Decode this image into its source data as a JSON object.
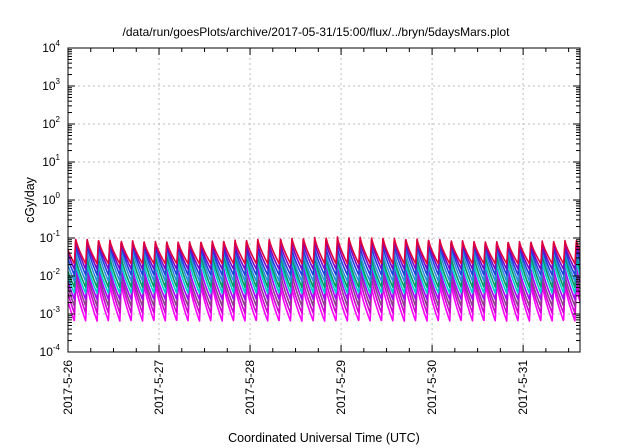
{
  "chart_data": {
    "type": "line",
    "title": "/data/run/goesPlots/archive/2017-05-31/15:00/flux/../bryn/5daysMars.plot",
    "xlabel": "Coordinated Universal Time (UTC)",
    "ylabel": "cGy/day",
    "yscale": "log",
    "ylim": [
      0.0001,
      10000
    ],
    "y_ticks": [
      {
        "base": "10",
        "exp": "-4"
      },
      {
        "base": "10",
        "exp": "-3"
      },
      {
        "base": "10",
        "exp": "-2"
      },
      {
        "base": "10",
        "exp": "-1"
      },
      {
        "base": "10",
        "exp": "0"
      },
      {
        "base": "10",
        "exp": "1"
      },
      {
        "base": "10",
        "exp": "2"
      },
      {
        "base": "10",
        "exp": "3"
      },
      {
        "base": "10",
        "exp": "4"
      }
    ],
    "x_range": [
      "2017-05-26T00:00",
      "2017-05-31T15:00"
    ],
    "x_tick_labels": [
      "2017-5-26",
      "2017-5-27",
      "2017-5-28",
      "2017-5-29",
      "2017-5-30",
      "2017-5-31"
    ],
    "grid": true,
    "oscillation": {
      "cycles_per_day": 8,
      "phase_days": 0.07
    },
    "series": [
      {
        "color": "#ff00ff",
        "peak": 0.006,
        "trough": 0.00065
      },
      {
        "color": "#d000d0",
        "peak": 0.009,
        "trough": 0.00105
      },
      {
        "color": "#8f3d8f",
        "peak": 0.013,
        "trough": 0.0016
      },
      {
        "color": "#aa00ff",
        "peak": 0.018,
        "trough": 0.0024
      },
      {
        "color": "#00cccc",
        "peak": 0.026,
        "trough": 0.0035
      },
      {
        "color": "#009966",
        "peak": 0.035,
        "trough": 0.005
      },
      {
        "color": "#2a8fe0",
        "peak": 0.047,
        "trough": 0.0072
      },
      {
        "color": "#2040d8",
        "peak": 0.062,
        "trough": 0.0105
      },
      {
        "color": "#7a00c8",
        "peak": 0.08,
        "trough": 0.015
      },
      {
        "color": "#e0003c",
        "peak": 0.094,
        "trough": 0.021
      }
    ]
  }
}
